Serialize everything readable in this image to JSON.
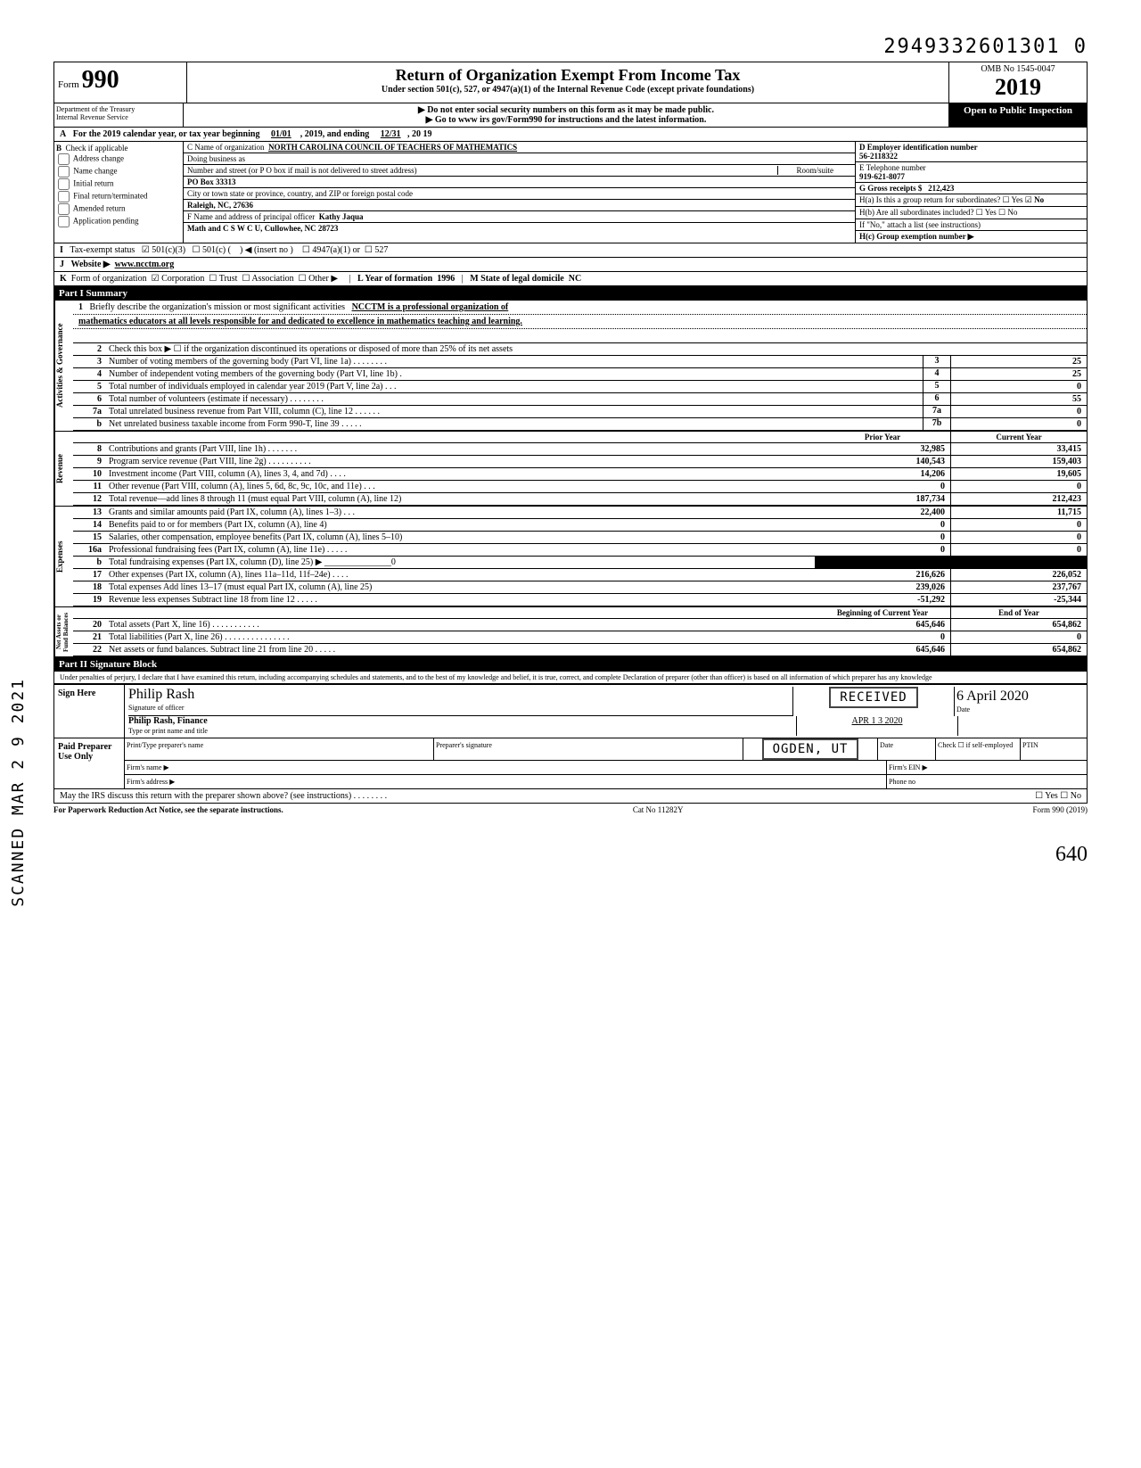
{
  "page_number_top": "2949332601301  0",
  "side_stamp": "SCANNED MAR 2 9 2021",
  "form": {
    "label": "Form",
    "number": "990",
    "title": "Return of Organization Exempt From Income Tax",
    "subtitle": "Under section 501(c), 527, or 4947(a)(1) of the Internal Revenue Code (except private foundations)",
    "warn": "▶ Do not enter social security numbers on this form as it may be made public.",
    "goto": "▶ Go to www irs gov/Form990 for instructions and the latest information.",
    "omb": "OMB No 1545-0047",
    "year": "2019",
    "open": "Open to Public Inspection",
    "dept": "Department of the Treasury\nInternal Revenue Service"
  },
  "lineA": {
    "text": "For the 2019 calendar year, or tax year beginning",
    "begin": "01/01",
    "mid": ", 2019, and ending",
    "end": "12/31",
    "suffix": ", 20  19"
  },
  "B": {
    "label": "Check if applicable",
    "items": [
      "Address change",
      "Name change",
      "Initial return",
      "Final return/terminated",
      "Amended return",
      "Application pending"
    ]
  },
  "C": {
    "name_label": "C Name of organization",
    "name": "NORTH CAROLINA COUNCIL OF TEACHERS OF MATHEMATICS",
    "dba_label": "Doing business as",
    "street_label": "Number and street (or P O  box if mail is not delivered to street address)",
    "room_label": "Room/suite",
    "street": "PO Box 33313",
    "city_label": "City or town  state or province, country, and ZIP or foreign postal code",
    "city": "Raleigh, NC,  27636",
    "officer_label": "F Name and address of principal officer",
    "officer_name": "Kathy Jaqua",
    "officer_addr": "Math and C S W C U, Cullowhee, NC 28723"
  },
  "D": {
    "label": "D Employer identification number",
    "value": "56-2118322"
  },
  "E": {
    "label": "E Telephone number",
    "value": "919-621-8077"
  },
  "G": {
    "label": "G Gross receipts $",
    "value": "212,423"
  },
  "H": {
    "a": "H(a) Is this a group return for subordinates?",
    "a_yes": false,
    "a_no": true,
    "b": "H(b) Are all subordinates included?",
    "b_note": "If \"No,\" attach a list  (see instructions)",
    "c": "H(c) Group exemption number ▶"
  },
  "I": {
    "label": "Tax-exempt status",
    "c3": true,
    "c3_label": "501(c)(3)",
    "c_label": "501(c) (",
    "insert": ") ◀ (insert no )",
    "a4947": "4947(a)(1) or",
    "s527": "527"
  },
  "J": {
    "label": "Website ▶",
    "value": "www.ncctm.org"
  },
  "K": {
    "label": "Form of organization",
    "corp": true,
    "corp_l": "Corporation",
    "trust_l": "Trust",
    "assoc_l": "Association",
    "other_l": "Other ▶",
    "L_label": "L Year of formation",
    "L_val": "1996",
    "M_label": "M State of legal domicile",
    "M_val": "NC"
  },
  "part1": {
    "label": "Part I      Summary",
    "gov_label": "Activities & Governance",
    "rev_label": "Revenue",
    "exp_label": "Expenses",
    "net_label": "Net Assets or\nFund Balances",
    "line1_label": "Briefly describe the organization's mission or most significant activities",
    "mission1": "NCCTM is a professional organization of",
    "mission2": "mathematics educators at all levels responsible for and dedicated to excellence in mathematics teaching and learning.",
    "line2": "Check this box ▶ ☐ if the organization discontinued its operations or disposed of more than 25% of its net assets",
    "rows_gov": [
      {
        "n": "3",
        "d": "Number of voting members of the governing body (Part VI, line 1a) .   .   .   .   .     .    .     .",
        "m": "3",
        "v": "25"
      },
      {
        "n": "4",
        "d": "Number of independent voting members of the governing body (Part VI, line 1b)   .",
        "m": "4",
        "v": "25"
      },
      {
        "n": "5",
        "d": "Total number of individuals employed in calendar year 2019 (Part V, line 2a)    .    .   .",
        "m": "5",
        "v": "0"
      },
      {
        "n": "6",
        "d": "Total number of volunteers (estimate if necessary)              .     .    .    .    .        .    .   .",
        "m": "6",
        "v": "55"
      },
      {
        "n": "7a",
        "d": "Total unrelated business revenue from Part VIII, column (C), line 12    .   .   .   .    .    .",
        "m": "7a",
        "v": "0"
      },
      {
        "n": "b",
        "d": "Net unrelated business taxable income from Form 990-T, line 39    .    .   .   .    .",
        "m": "7b",
        "v": "0"
      }
    ],
    "col_prior": "Prior Year",
    "col_curr": "Current Year",
    "rows_rev": [
      {
        "n": "8",
        "d": "Contributions and grants (Part VIII, line 1h)        .    .    .       .    .     .    .",
        "p": "32,985",
        "c": "33,415"
      },
      {
        "n": "9",
        "d": "Program service revenue (Part VIII, line 2g)     .    .    .   .   .   .   .   .   .   .",
        "p": "140,543",
        "c": "159,403"
      },
      {
        "n": "10",
        "d": "Investment income (Part VIII, column (A), lines 3, 4, and 7d)    .   .   .   .",
        "p": "14,206",
        "c": "19,605"
      },
      {
        "n": "11",
        "d": "Other revenue (Part VIII, column (A), lines 5, 6d, 8c, 9c, 10c, and 11e) .   .   .",
        "p": "0",
        "c": "0"
      },
      {
        "n": "12",
        "d": "Total revenue—add lines 8 through 11 (must equal Part VIII, column (A), line 12)",
        "p": "187,734",
        "c": "212,423"
      }
    ],
    "rows_exp": [
      {
        "n": "13",
        "d": "Grants and similar amounts paid (Part IX, column (A), lines 1–3)      .   .    .",
        "p": "22,400",
        "c": "11,715"
      },
      {
        "n": "14",
        "d": "Benefits paid to or for members (Part IX, column (A), line 4)",
        "p": "0",
        "c": "0"
      },
      {
        "n": "15",
        "d": "Salaries, other compensation, employee benefits (Part IX, column (A), lines 5–10)",
        "p": "0",
        "c": "0"
      },
      {
        "n": "16a",
        "d": "Professional fundraising fees (Part IX, column (A), line 11e)   .   .      .     .    .",
        "p": "0",
        "c": "0"
      },
      {
        "n": "b",
        "d": "Total fundraising expenses (Part IX, column (D), line 25) ▶  _______________0",
        "p": "",
        "c": "",
        "shaded": true
      },
      {
        "n": "17",
        "d": "Other expenses (Part IX, column (A), lines 11a–11d, 11f–24e)     .    .    .    .",
        "p": "216,626",
        "c": "226,052"
      },
      {
        "n": "18",
        "d": "Total expenses  Add lines 13–17 (must equal Part IX, column (A), line 25)",
        "p": "239,026",
        "c": "237,767"
      },
      {
        "n": "19",
        "d": "Revenue less expenses  Subtract line 18 from line 12        .    .    .    .   .",
        "p": "-51,292",
        "c": "-25,344"
      }
    ],
    "col_begin": "Beginning of Current Year",
    "col_end": "End of Year",
    "rows_net": [
      {
        "n": "20",
        "d": "Total assets (Part X, line 16)       .    .       .    .    .    .    .    .    .    .    .",
        "p": "645,646",
        "c": "654,862"
      },
      {
        "n": "21",
        "d": "Total liabilities (Part X, line 26) .   .   .   .   .   .   .   .   .   .   .   .   .    .    .",
        "p": "0",
        "c": "0"
      },
      {
        "n": "22",
        "d": "Net assets or fund balances. Subtract line 21 from line 20      .    .    .    .    .",
        "p": "645,646",
        "c": "654,862"
      }
    ]
  },
  "part2": {
    "label": "Part II     Signature Block",
    "perjury": "Under penalties of perjury, I declare that I have examined this return, including accompanying schedules and statements, and to the best of my knowledge  and belief, it is true, correct, and complete  Declaration of preparer (other than officer) is based on all information of which preparer has any knowledge",
    "sign_here": "Sign Here",
    "sig_label": "Signature of officer",
    "sig_value": "Philip Rash",
    "date_label": "Date",
    "date_value": "6 April 2020",
    "name_label": "Type or print name and title",
    "name_value": "Philip Rash, Finance",
    "received": "RECEIVED",
    "received_date": "APR 1 3 2020",
    "ogden": "OGDEN, UT",
    "paid": "Paid Preparer Use Only",
    "prep_name_l": "Print/Type preparer's name",
    "prep_sig_l": "Preparer's signature",
    "prep_date_l": "Date",
    "check_l": "Check ☐ if self-employed",
    "ptin_l": "PTIN",
    "firm_name_l": "Firm's name    ▶",
    "firm_ein_l": "Firm's EIN ▶",
    "firm_addr_l": "Firm's address ▶",
    "phone_l": "Phone no",
    "discuss": "May the IRS discuss this return with the preparer shown above? (see instructions)   .   .   .   .    .             .           .    .",
    "discuss_yn": "☐ Yes ☐ No"
  },
  "footer": {
    "left": "For Paperwork Reduction Act Notice, see the separate instructions.",
    "mid": "Cat No  11282Y",
    "right": "Form 990 (2019)"
  },
  "handwrite": "640"
}
